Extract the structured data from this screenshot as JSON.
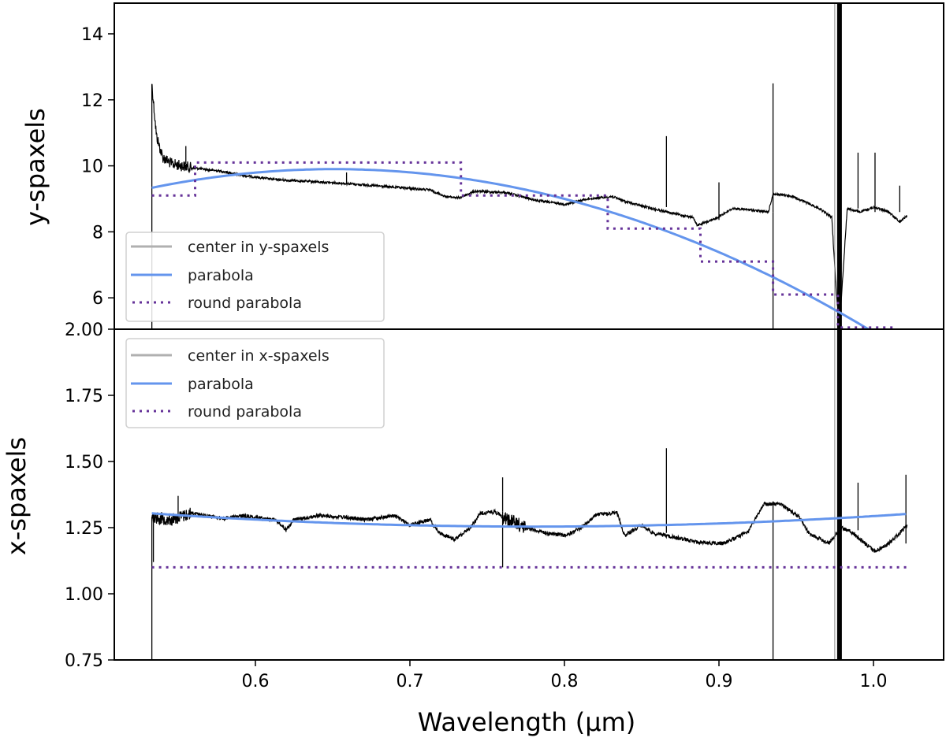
{
  "chart_data": {
    "type": "line",
    "xlabel": "Wavelength (µm)",
    "xlim": [
      0.5087,
      1.0454
    ],
    "x_ticks": [
      "0.6",
      "0.7",
      "0.8",
      "0.9",
      "1.0"
    ],
    "x_tick_values": [
      0.6,
      0.7,
      0.8,
      0.9,
      1.0
    ],
    "colors": {
      "center": "#000000",
      "center_legend": "#b0b0b0",
      "parabola": "#6495ed",
      "round_parabola": "#663399"
    },
    "panels": [
      {
        "ylabel": "y-spaxels",
        "ylim": [
          5.05,
          14.93
        ],
        "y_ticks": [
          "6",
          "8",
          "10",
          "12",
          "14"
        ],
        "y_tick_values": [
          6,
          8,
          10,
          12,
          14
        ],
        "legend": {
          "placement": "lower-left",
          "entries": [
            "center in y-spaxels",
            "parabola",
            "round parabola"
          ]
        },
        "center": [
          [
            0.533,
            12.48
          ],
          [
            0.536,
            10.9
          ],
          [
            0.54,
            10.26
          ],
          [
            0.546,
            10.06
          ],
          [
            0.559,
            9.94
          ],
          [
            0.579,
            9.83
          ],
          [
            0.592,
            9.71
          ],
          [
            0.611,
            9.59
          ],
          [
            0.625,
            9.55
          ],
          [
            0.657,
            9.47
          ],
          [
            0.69,
            9.35
          ],
          [
            0.713,
            9.27
          ],
          [
            0.723,
            9.07
          ],
          [
            0.732,
            9.03
          ],
          [
            0.742,
            9.23
          ],
          [
            0.762,
            9.19
          ],
          [
            0.782,
            8.95
          ],
          [
            0.801,
            8.83
          ],
          [
            0.814,
            8.99
          ],
          [
            0.831,
            9.07
          ],
          [
            0.84,
            8.91
          ],
          [
            0.853,
            8.75
          ],
          [
            0.87,
            8.56
          ],
          [
            0.883,
            8.44
          ],
          [
            0.886,
            8.2
          ],
          [
            0.896,
            8.36
          ],
          [
            0.909,
            8.71
          ],
          [
            0.919,
            8.67
          ],
          [
            0.932,
            8.6
          ],
          [
            0.935,
            9.15
          ],
          [
            0.948,
            9.07
          ],
          [
            0.965,
            8.71
          ],
          [
            0.973,
            8.44
          ],
          [
            0.976,
            6.13
          ],
          [
            0.978,
            5.1
          ],
          [
            0.983,
            8.71
          ],
          [
            0.991,
            8.6
          ],
          [
            1.001,
            8.75
          ],
          [
            1.01,
            8.6
          ],
          [
            1.017,
            8.3
          ],
          [
            1.022,
            8.5
          ]
        ],
        "spikes": [
          [
            0.533,
            5.05
          ],
          [
            0.555,
            10.6
          ],
          [
            0.659,
            9.8
          ],
          [
            0.866,
            10.9
          ],
          [
            0.9,
            9.5
          ],
          [
            0.935,
            12.5
          ],
          [
            0.935,
            5.05
          ],
          [
            0.99,
            10.4
          ],
          [
            1.001,
            10.4
          ],
          [
            1.017,
            9.4
          ]
        ],
        "saturated_band": [
          0.978,
          5.05,
          14.93
        ],
        "parabola": {
          "vertex_x": 0.651,
          "vertex_y": 9.9,
          "a": -40.6,
          "x_range": [
            0.533,
            1.022
          ]
        },
        "round_parabola": [
          [
            0.533,
            0.561,
            9.1
          ],
          [
            0.561,
            0.733,
            10.1
          ],
          [
            0.733,
            0.828,
            9.1
          ],
          [
            0.828,
            0.888,
            8.1
          ],
          [
            0.888,
            0.935,
            7.1
          ],
          [
            0.935,
            0.977,
            6.1
          ],
          [
            0.977,
            1.014,
            5.1
          ]
        ]
      },
      {
        "ylabel": "x-spaxels",
        "ylim": [
          0.75,
          2.0
        ],
        "y_ticks": [
          "0.75",
          "1.00",
          "1.25",
          "1.50",
          "1.75",
          "2.00"
        ],
        "y_tick_values": [
          0.75,
          1.0,
          1.25,
          1.5,
          1.75,
          2.0
        ],
        "legend": {
          "placement": "upper-left",
          "entries": [
            "center in x-spaxels",
            "parabola",
            "round parabola"
          ]
        },
        "center": [
          [
            0.533,
            1.29
          ],
          [
            0.546,
            1.28
          ],
          [
            0.559,
            1.305
          ],
          [
            0.579,
            1.285
          ],
          [
            0.592,
            1.295
          ],
          [
            0.613,
            1.28
          ],
          [
            0.62,
            1.24
          ],
          [
            0.625,
            1.28
          ],
          [
            0.641,
            1.295
          ],
          [
            0.657,
            1.29
          ],
          [
            0.67,
            1.28
          ],
          [
            0.69,
            1.295
          ],
          [
            0.7,
            1.26
          ],
          [
            0.713,
            1.28
          ],
          [
            0.719,
            1.23
          ],
          [
            0.729,
            1.205
          ],
          [
            0.739,
            1.25
          ],
          [
            0.746,
            1.305
          ],
          [
            0.755,
            1.31
          ],
          [
            0.76,
            1.29
          ],
          [
            0.775,
            1.25
          ],
          [
            0.788,
            1.23
          ],
          [
            0.801,
            1.22
          ],
          [
            0.811,
            1.25
          ],
          [
            0.821,
            1.3
          ],
          [
            0.834,
            1.305
          ],
          [
            0.839,
            1.22
          ],
          [
            0.85,
            1.26
          ],
          [
            0.857,
            1.23
          ],
          [
            0.87,
            1.215
          ],
          [
            0.886,
            1.195
          ],
          [
            0.903,
            1.19
          ],
          [
            0.919,
            1.235
          ],
          [
            0.929,
            1.339
          ],
          [
            0.94,
            1.339
          ],
          [
            0.952,
            1.29
          ],
          [
            0.958,
            1.23
          ],
          [
            0.971,
            1.19
          ],
          [
            0.979,
            1.25
          ],
          [
            0.984,
            1.24
          ],
          [
            1.001,
            1.16
          ],
          [
            1.01,
            1.19
          ],
          [
            1.022,
            1.26
          ]
        ],
        "spikes": [
          [
            0.533,
            0.75
          ],
          [
            0.534,
            1.12
          ],
          [
            0.55,
            1.37
          ],
          [
            0.76,
            1.44
          ],
          [
            0.76,
            1.1
          ],
          [
            0.866,
            1.55
          ],
          [
            0.935,
            0.75
          ],
          [
            0.99,
            1.42
          ],
          [
            1.021,
            1.45
          ]
        ],
        "saturated_band": [
          0.978,
          0.75,
          2.0
        ],
        "parabola": {
          "vertex_x": 0.78,
          "vertex_y": 1.254,
          "a": 0.82,
          "x_range": [
            0.533,
            1.022
          ]
        },
        "round_parabola": [
          [
            0.533,
            1.022,
            1.1
          ]
        ]
      }
    ]
  }
}
